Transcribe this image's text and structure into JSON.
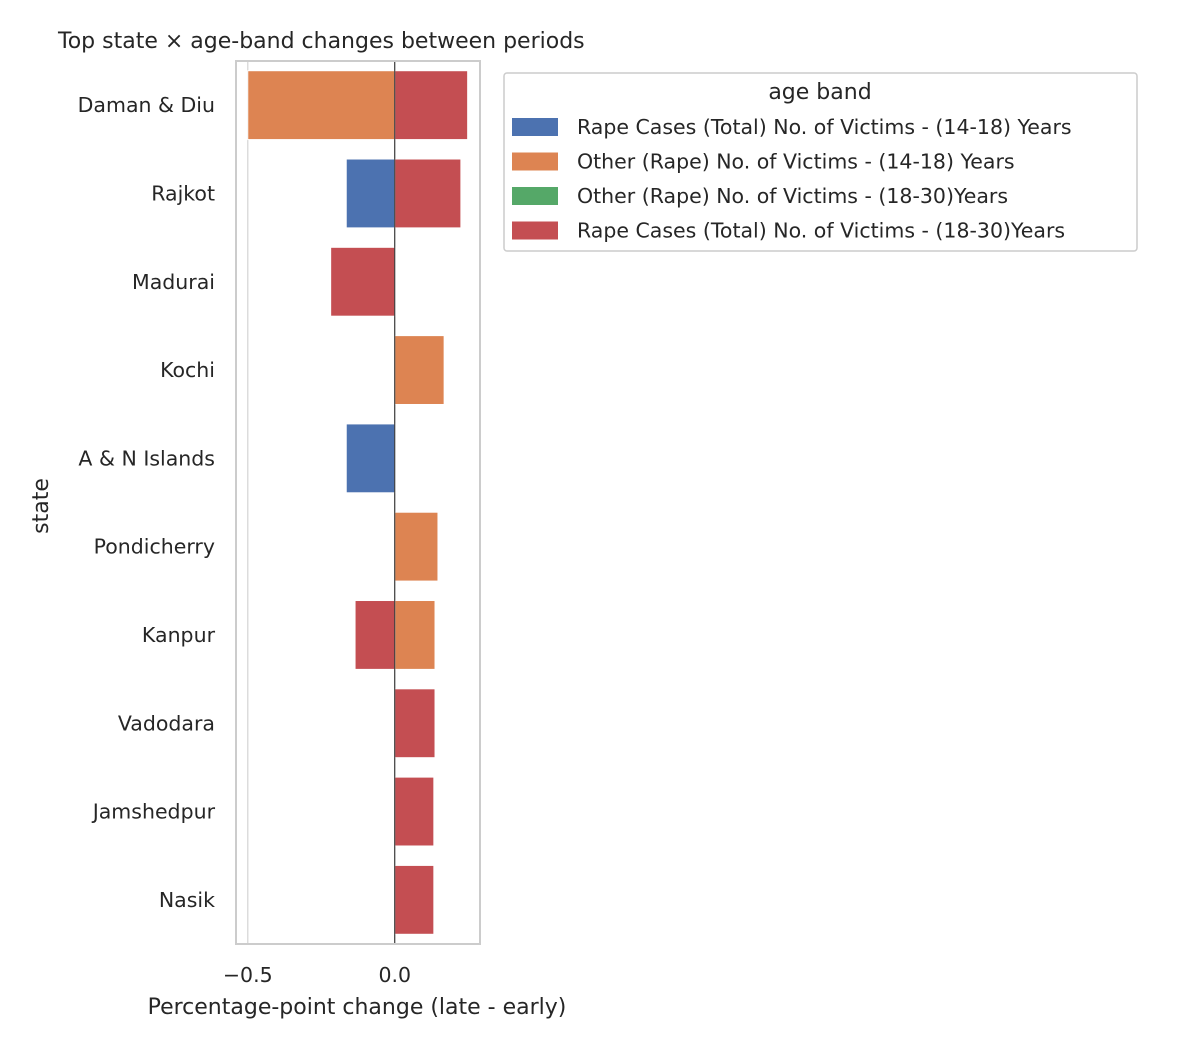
{
  "chart_data": {
    "type": "bar",
    "orientation": "horizontal",
    "title": "Top state × age-band changes between periods",
    "xlabel": "Percentage-point change (late - early)",
    "ylabel": "state",
    "categories": [
      "Daman & Diu",
      "Rajkot",
      "Madurai",
      "Kochi",
      "A & N Islands",
      "Pondicherry",
      "Kanpur",
      "Vadodara",
      "Jamshedpur",
      "Nasik"
    ],
    "xlim": [
      -0.54,
      0.29
    ],
    "xticks": [
      -0.5,
      0.0
    ],
    "xtick_labels": [
      "−0.5",
      "0.0"
    ],
    "grid": true,
    "legend": {
      "title": "age band",
      "placement": "outside-right-top"
    },
    "series": [
      {
        "name": "Rape Cases (Total) No. of Victims - (14-18) Years",
        "color": "#4c72b0",
        "values": [
          null,
          -0.165,
          null,
          null,
          -0.165,
          null,
          null,
          null,
          null,
          null
        ]
      },
      {
        "name": "Other (Rape) No. of Victims - (14-18) Years",
        "color": "#dd8452",
        "values": [
          -0.5,
          null,
          null,
          0.168,
          null,
          0.147,
          0.137,
          null,
          null,
          null
        ]
      },
      {
        "name": "Other (Rape) No. of Victims - (18-30)Years",
        "color": "#55a868",
        "values": [
          null,
          null,
          null,
          null,
          null,
          null,
          null,
          null,
          null,
          null
        ]
      },
      {
        "name": "Rape Cases (Total) No. of Victims - (18-30)Years",
        "color": "#c44e52",
        "values": [
          0.248,
          0.225,
          -0.218,
          null,
          null,
          null,
          -0.135,
          0.137,
          0.133,
          0.133
        ]
      }
    ]
  }
}
